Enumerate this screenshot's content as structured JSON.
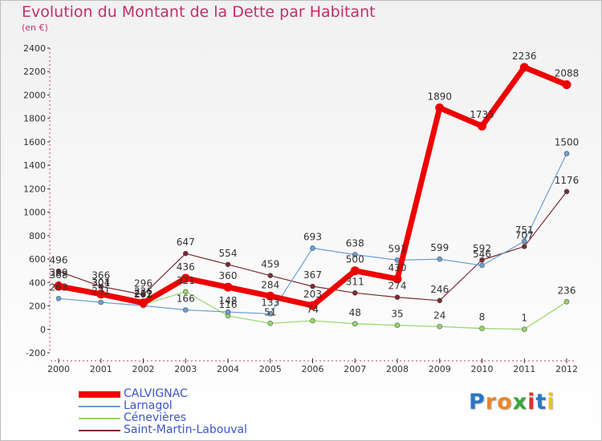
{
  "header": {
    "title": "Evolution du Montant de la Dette par Habitant",
    "subtitle": "(en €)"
  },
  "logo": {
    "text": "Proxiti",
    "colors": [
      "#2a76c6",
      "#e8872a",
      "#e8872a",
      "#3aa63a",
      "#d7352b",
      "#2a76c6",
      "#e8c02a"
    ]
  },
  "chart_data": {
    "type": "line",
    "title": "Evolution du Montant de la Dette par Habitant",
    "subtitle": "(en €)",
    "xlabel": "",
    "ylabel": "",
    "categories": [
      "2000",
      "2001",
      "2002",
      "2003",
      "2004",
      "2005",
      "2006",
      "2007",
      "2008",
      "2009",
      "2010",
      "2011",
      "2012"
    ],
    "ylim": [
      -200,
      2400
    ],
    "yticks": [
      -200,
      0,
      200,
      400,
      600,
      800,
      1000,
      1200,
      1400,
      1600,
      1800,
      2000,
      2200,
      2400
    ],
    "grid": false,
    "legend_position": "bottom-left",
    "series": [
      {
        "name": "CALVIGNAC",
        "color": "#ee0000",
        "values": [
          368,
          301,
          226,
          436,
          360,
          284,
          203,
          500,
          430,
          1890,
          1735,
          2236,
          2088
        ]
      },
      {
        "name": "Larnagol",
        "color": "#6a9fd4",
        "values": [
          263,
          231,
          202,
          166,
          148,
          133,
          693,
          638,
          591,
          599,
          546,
          751,
          1500
        ]
      },
      {
        "name": "Cénevières",
        "color": "#96d66a",
        "values": [
          389,
          304,
          211,
          321,
          116,
          51,
          74,
          48,
          35,
          24,
          8,
          1,
          236
        ]
      },
      {
        "name": "Saint-Martin-Labouval",
        "color": "#7a2a32",
        "values": [
          496,
          366,
          296,
          647,
          554,
          459,
          367,
          311,
          274,
          246,
          592,
          707,
          1176
        ]
      }
    ]
  }
}
